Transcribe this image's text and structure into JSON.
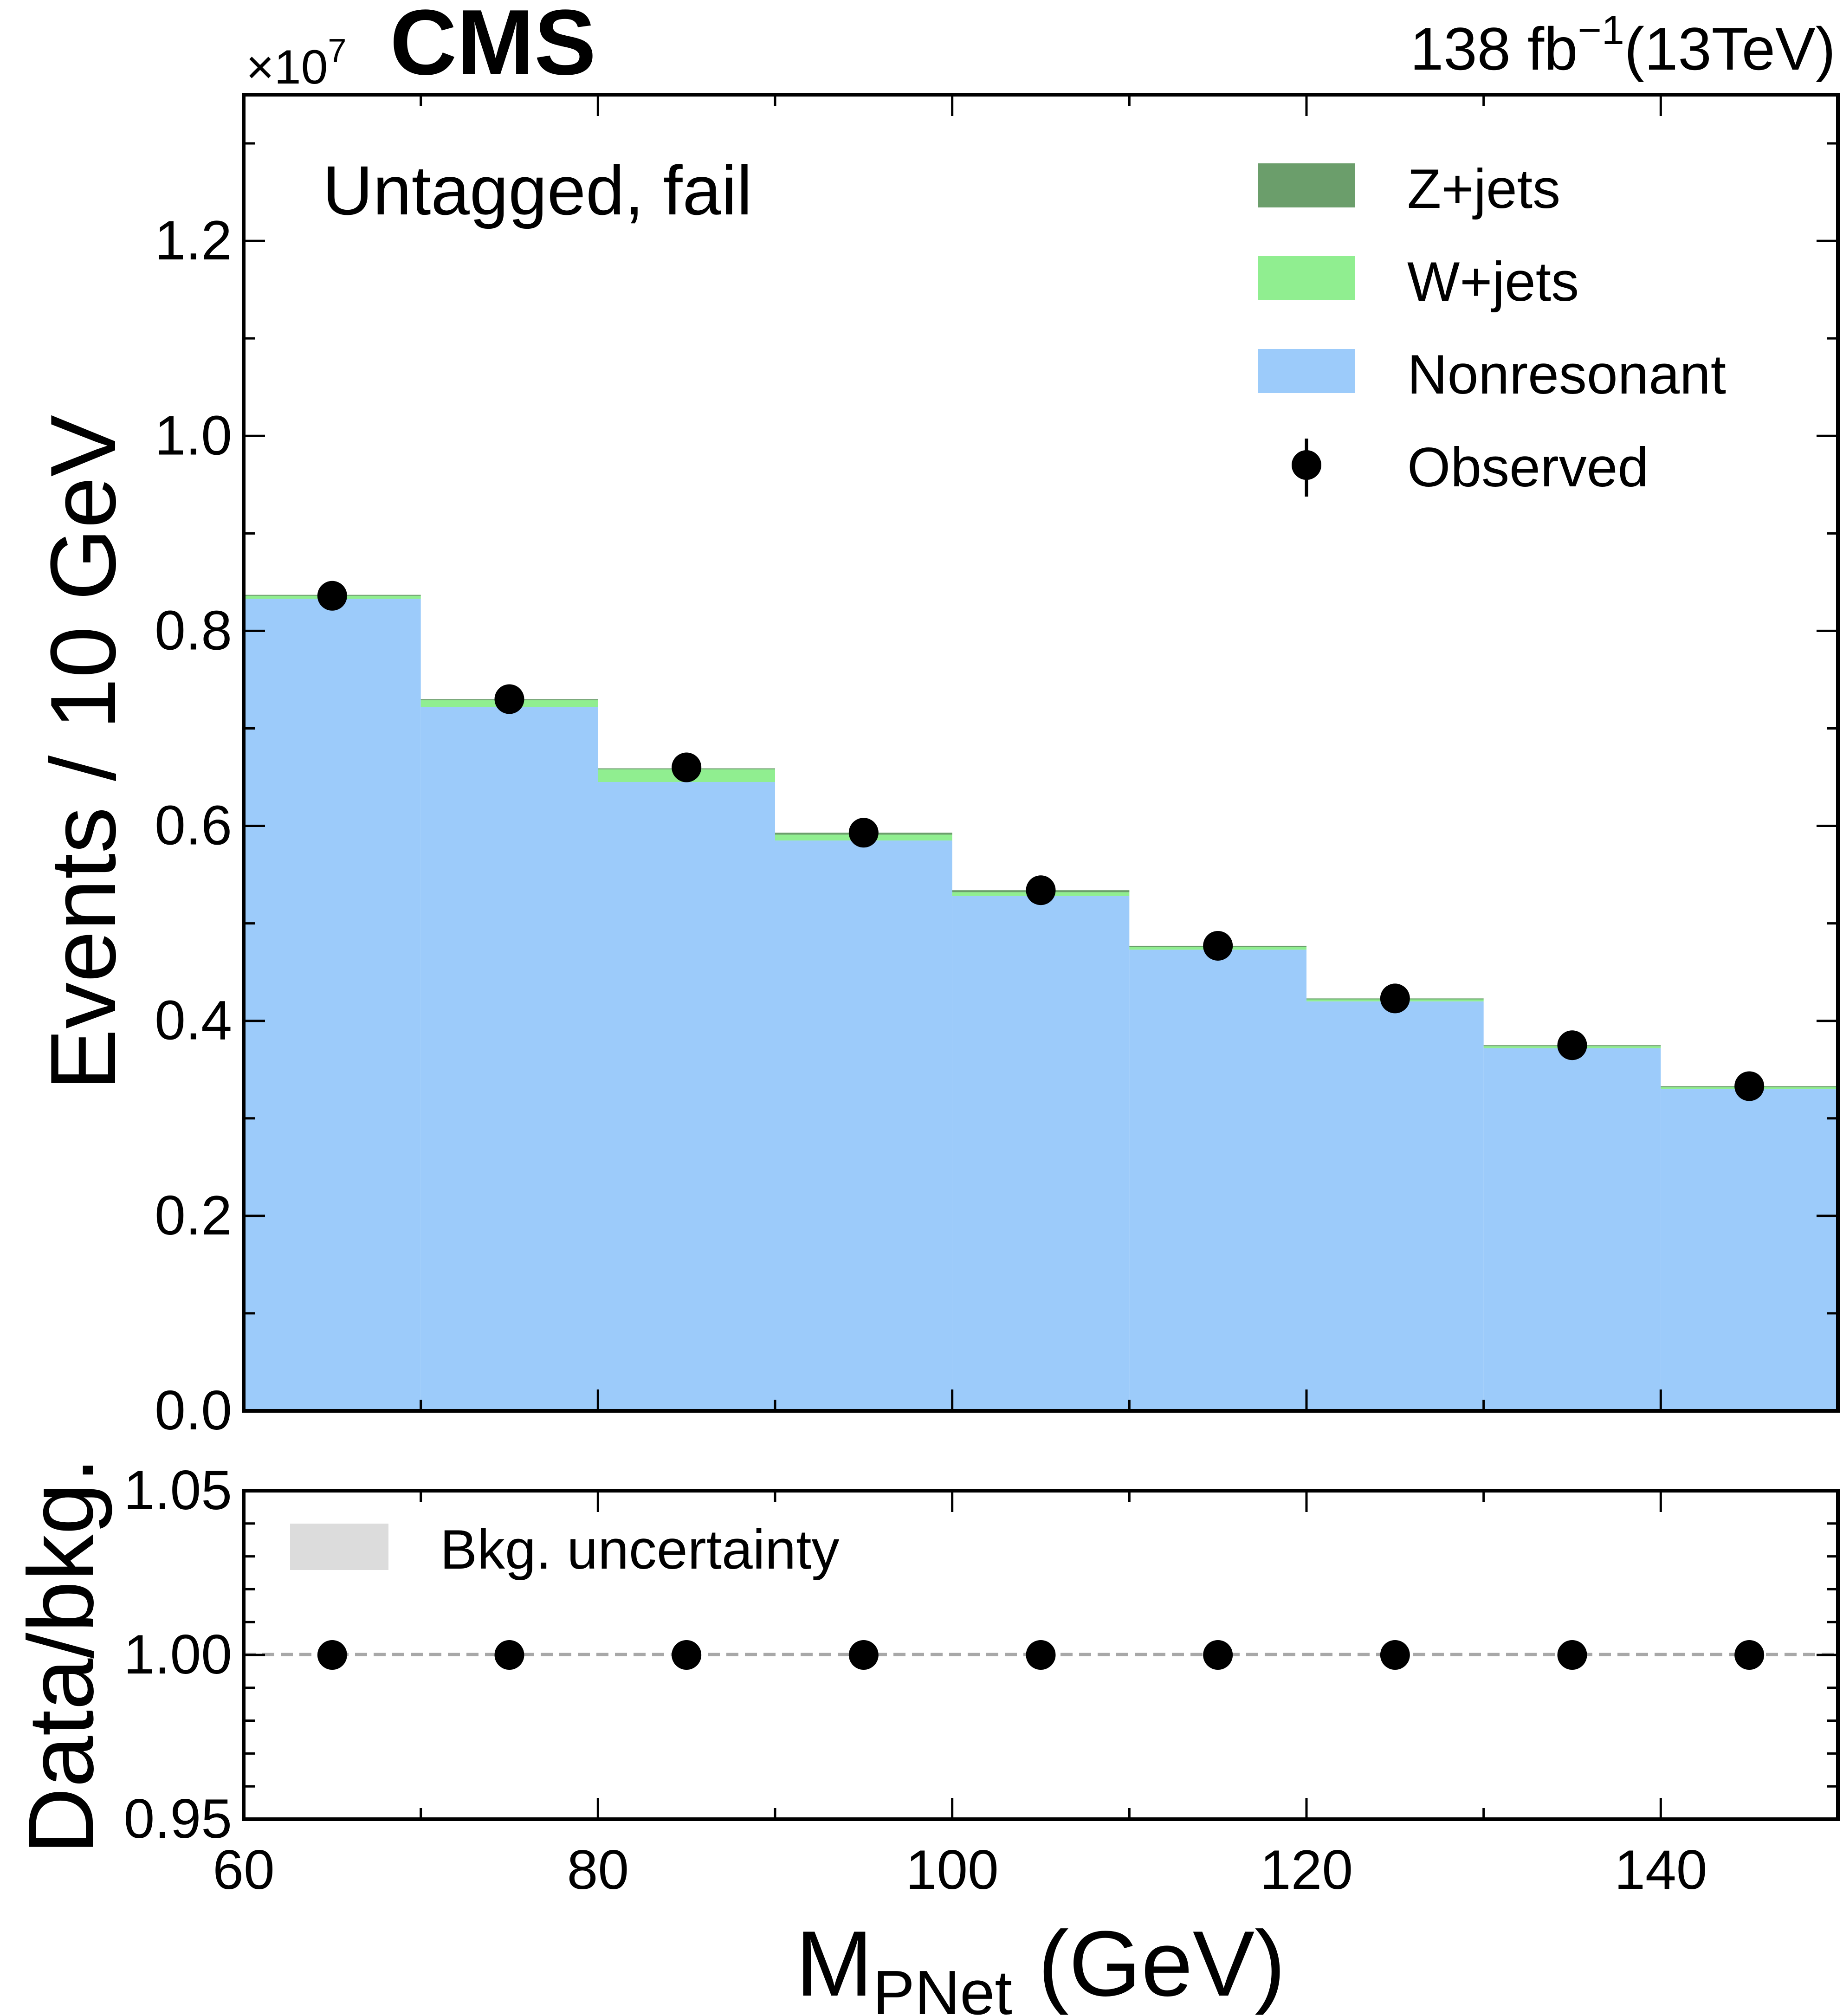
{
  "header": {
    "experiment": "CMS",
    "lumi": "138 fb",
    "lumi_exponent": "−1",
    "energy": "(13TeV)",
    "multiplier_base": "×10",
    "multiplier_exponent": "7"
  },
  "category_label": "Untagged, fail",
  "colors": {
    "zjets": "#6b9e6b",
    "wjets": "#90ee90",
    "nonresonant": "#9ccbfa",
    "uncertainty": "#dcdcdc",
    "observed": "#000000"
  },
  "chart_data": [
    {
      "type": "stacked-step-histogram",
      "panel": "main",
      "ylabel": "Events / 10 GeV",
      "y_scale_factor": 10000000,
      "ylim": [
        0,
        1.35
      ],
      "xlim": [
        60,
        150
      ],
      "y_ticks": [
        0.0,
        0.2,
        0.4,
        0.6,
        0.8,
        1.0,
        1.2
      ],
      "y_tick_labels": [
        "0.0",
        "0.2",
        "0.4",
        "0.6",
        "0.8",
        "1.0",
        "1.2"
      ],
      "bin_edges": [
        60,
        70,
        80,
        90,
        100,
        110,
        120,
        130,
        140,
        150
      ],
      "bin_centers": [
        65,
        75,
        85,
        95,
        105,
        115,
        125,
        135,
        145
      ],
      "series": [
        {
          "name": "Nonresonant",
          "values": [
            0.833,
            0.722,
            0.645,
            0.585,
            0.528,
            0.473,
            0.42,
            0.372,
            0.33
          ]
        },
        {
          "name": "W+jets",
          "values": [
            0.003,
            0.007,
            0.013,
            0.006,
            0.004,
            0.003,
            0.002,
            0.002,
            0.002
          ]
        },
        {
          "name": "Z+jets",
          "values": [
            0.001,
            0.001,
            0.001,
            0.002,
            0.002,
            0.001,
            0.001,
            0.001,
            0.001
          ]
        }
      ],
      "observed": {
        "name": "Observed",
        "values": [
          0.836,
          0.73,
          0.66,
          0.593,
          0.534,
          0.477,
          0.423,
          0.375,
          0.333
        ]
      },
      "legend": {
        "placement": "top-right",
        "entries": [
          "Z+jets",
          "W+jets",
          "Nonresonant",
          "Observed"
        ]
      }
    },
    {
      "type": "ratio",
      "panel": "ratio",
      "ylabel": "Data/bkg.",
      "xlabel_main": "M",
      "xlabel_sub": "PNet",
      "xlabel_unit": " (GeV)",
      "ylim": [
        0.95,
        1.05
      ],
      "y_ticks": [
        0.95,
        1.0,
        1.05
      ],
      "y_tick_labels": [
        "0.95",
        "1.00",
        "1.05"
      ],
      "xlim": [
        60,
        150
      ],
      "x_ticks": [
        60,
        80,
        100,
        120,
        140
      ],
      "x_tick_labels": [
        "60",
        "80",
        "100",
        "120",
        "140"
      ],
      "x": [
        65,
        75,
        85,
        95,
        105,
        115,
        125,
        135,
        145
      ],
      "values": [
        1.0,
        1.0,
        1.0,
        1.0,
        1.0,
        1.0,
        1.0,
        1.0,
        1.0
      ],
      "legend": {
        "placement": "top-left",
        "entries": [
          "Bkg. uncertainty"
        ]
      }
    }
  ]
}
